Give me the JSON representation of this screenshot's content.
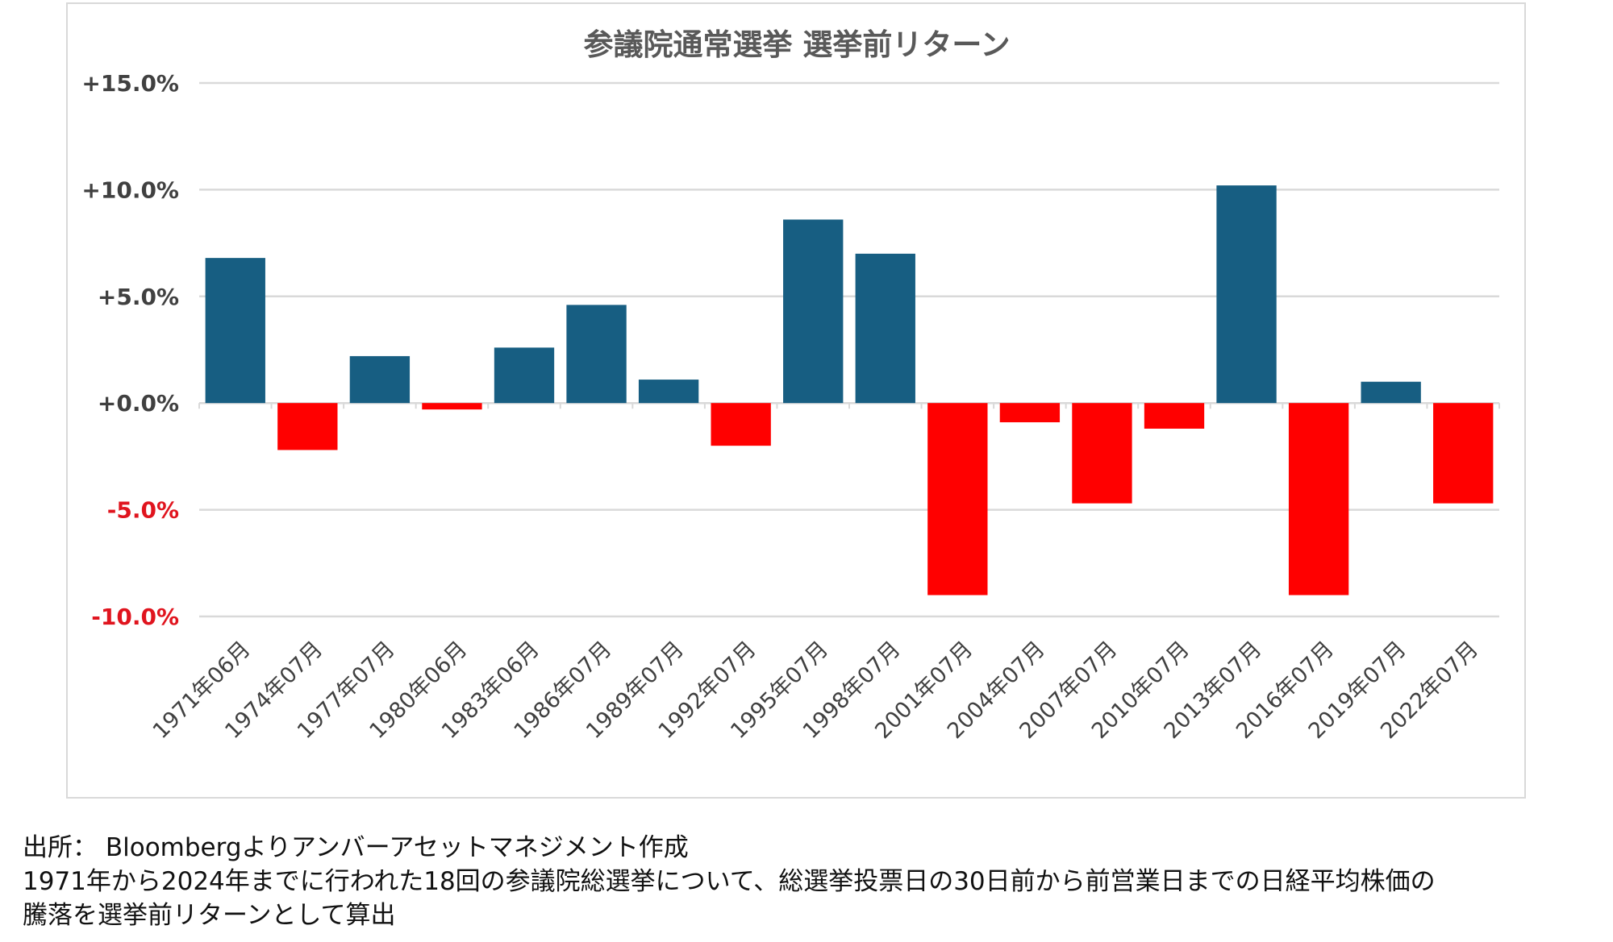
{
  "chart_data": {
    "type": "bar",
    "title": "参議院通常選挙 選挙前リターン",
    "xlabel": "",
    "ylabel": "",
    "ylim": [
      -10,
      15
    ],
    "yticks": [
      15,
      10,
      5,
      0,
      -5,
      -10
    ],
    "ytick_labels": [
      "+15.0%",
      "+10.0%",
      "+5.0%",
      "+0.0%",
      "-5.0%",
      "-10.0%"
    ],
    "grid": true,
    "categories": [
      "1971年06月",
      "1974年07月",
      "1977年07月",
      "1980年06月",
      "1983年06月",
      "1986年07月",
      "1989年07月",
      "1992年07月",
      "1995年07月",
      "1998年07月",
      "2001年07月",
      "2004年07月",
      "2007年07月",
      "2010年07月",
      "2013年07月",
      "2016年07月",
      "2019年07月",
      "2022年07月"
    ],
    "values": [
      6.8,
      -2.2,
      2.2,
      -0.3,
      2.6,
      4.6,
      1.1,
      -2.0,
      8.6,
      7.0,
      -9.0,
      -0.9,
      -4.7,
      -1.2,
      10.2,
      -9.0,
      1.0,
      -4.7
    ],
    "colors": {
      "positive": "#175e82",
      "negative": "#ff0000",
      "grid": "#d9d9d9",
      "negative_label": "#e0141e",
      "positive_label": "#404040"
    }
  },
  "notes": {
    "source": "出所： Bloombergよりアンバーアセットマネジメント作成",
    "line1": "1971年から2024年までに行われた18回の参議院総選挙について、総選挙投票日の30日前から前営業日までの日経平均株価の",
    "line2": "騰落を選挙前リターンとして算出"
  }
}
